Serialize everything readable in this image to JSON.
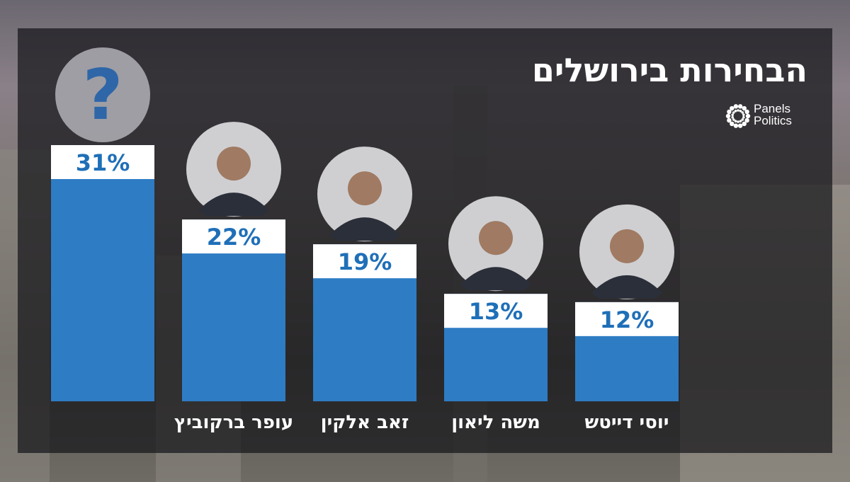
{
  "title": "הבחירות בירושלים",
  "logo": {
    "line1": "Panels",
    "line2": "Politics",
    "icon": "sunburst-logo-icon"
  },
  "mystery_mark": "?",
  "colors": {
    "bar": "#2e7cc4",
    "label_bg": "#ffffff",
    "label_text": "#1f6fb8",
    "panel": "#1c1c20"
  },
  "chart_data": {
    "type": "bar",
    "categories": [
      "",
      "עופר ברקוביץ",
      "זאב אלקין",
      "משה ליאון",
      "יוסי דייטש"
    ],
    "values": [
      31,
      22,
      19,
      13,
      12
    ],
    "data_labels": [
      "31%",
      "22%",
      "19%",
      "13%",
      "12%"
    ],
    "title": "הבחירות בירושלים",
    "xlabel": "",
    "ylabel": "",
    "ylim": [
      0,
      31
    ],
    "grid": false,
    "legend": "none"
  }
}
